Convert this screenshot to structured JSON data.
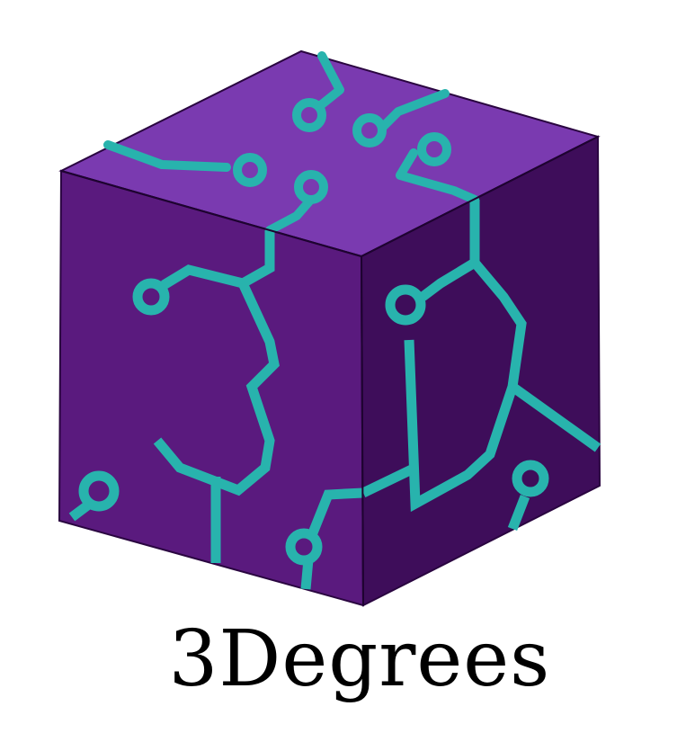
{
  "logo": {
    "wordmark": "3Degrees",
    "colors": {
      "top_face": "#7a3ab0",
      "left_face": "#5a1a7e",
      "right_face": "#3e0d5a",
      "trace": "#28b3ad",
      "edge": "#2a0540",
      "wordmark": "#000000"
    },
    "icon": "circuit-board-cube-icon"
  }
}
